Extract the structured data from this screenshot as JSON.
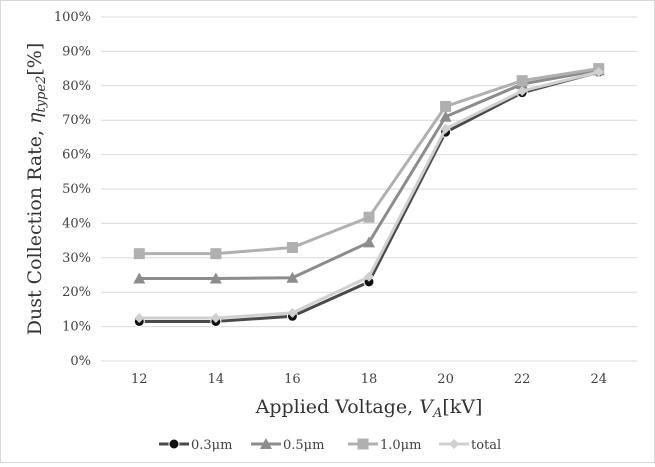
{
  "chart_data": {
    "type": "line",
    "x": [
      12,
      14,
      16,
      18,
      20,
      22,
      24
    ],
    "series": [
      {
        "name": "0.3μm",
        "values": [
          11.5,
          11.5,
          13,
          23,
          66.5,
          78,
          84
        ],
        "color": "#4a4a4a",
        "marker": "circle"
      },
      {
        "name": "0.5μm",
        "values": [
          24,
          24,
          24.2,
          34.5,
          71,
          80.5,
          84.5
        ],
        "color": "#8c8c8c",
        "marker": "triangle"
      },
      {
        "name": "1.0μm",
        "values": [
          31.2,
          31.2,
          33,
          41.8,
          74,
          81.5,
          85
        ],
        "color": "#b0b0b0",
        "marker": "square"
      },
      {
        "name": "total",
        "values": [
          12.5,
          12.5,
          14,
          24.5,
          67.5,
          78.5,
          84
        ],
        "color": "#d0d0d0",
        "marker": "diamond"
      }
    ],
    "xlabel": {
      "prefix": "Applied Voltage, ",
      "var": "V",
      "sub": "A",
      "suffix": "[kV]"
    },
    "ylabel": {
      "prefix": "Dust Collection Rate, ",
      "var": "η",
      "sub": "type2",
      "suffix": "[%]"
    },
    "xticks": [
      "12",
      "14",
      "16",
      "18",
      "20",
      "22",
      "24"
    ],
    "yticks": [
      "0%",
      "10%",
      "20%",
      "30%",
      "40%",
      "50%",
      "60%",
      "70%",
      "80%",
      "90%",
      "100%"
    ],
    "ylim": [
      0,
      100
    ],
    "grid": true,
    "legend_position": "bottom"
  }
}
